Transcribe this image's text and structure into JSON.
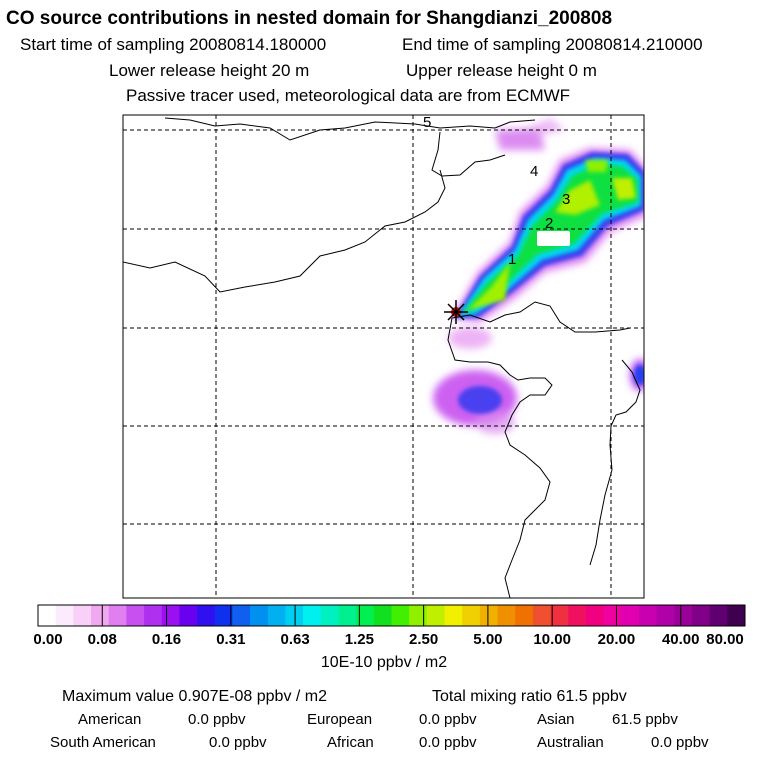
{
  "header": {
    "title": "CO  source contributions in nested domain for Shangdianzi_200808",
    "start_time": "Start time of sampling 20080814.180000",
    "end_time": "End time of sampling 20080814.210000",
    "lower_height": "Lower release height   20 m",
    "upper_height": "Upper release height    0 m",
    "tracer_note": "Passive tracer used, meteorological data are from ECMWF"
  },
  "chart_data": {
    "type": "heatmap",
    "title": "CO  source contributions in nested domain for Shangdianzi_200808",
    "grid": true,
    "colorbar": {
      "tick_labels": [
        "0.00",
        "0.08",
        "0.16",
        "0.31",
        "0.63",
        "1.25",
        "2.50",
        "5.00",
        "10.00",
        "20.00",
        "40.00",
        "80.00"
      ],
      "tick_values": [
        0.0,
        0.08,
        0.16,
        0.31,
        0.63,
        1.25,
        2.5,
        5.0,
        10.0,
        20.0,
        40.0,
        80.0
      ],
      "unit": "10E-10 ppbv / m2",
      "colors": [
        "#ffffff",
        "#fcebfc",
        "#f8d0f8",
        "#f0a8f0",
        "#e080f0",
        "#c850f0",
        "#b030f0",
        "#9a10f0",
        "#6a00f0",
        "#3010f0",
        "#1030f0",
        "#1060f0",
        "#0090f0",
        "#00b0f0",
        "#00d0f0",
        "#00f0f0",
        "#00f0c0",
        "#00f090",
        "#00f050",
        "#10e020",
        "#40f000",
        "#90f000",
        "#c0f000",
        "#f0f000",
        "#f0d000",
        "#f0b000",
        "#f09000",
        "#f07000",
        "#f05030",
        "#f03040",
        "#f01060",
        "#f00080",
        "#f000a0",
        "#e000b0",
        "#c800b0",
        "#b000a8",
        "#980098",
        "#800088",
        "#600070",
        "#400050"
      ]
    },
    "trajectory_labels": [
      "1",
      "2",
      "3",
      "4",
      "5"
    ],
    "receptor": "Shangdianzi"
  },
  "stats": {
    "max_value": "Maximum value  0.907E-08 ppbv / m2",
    "total_mixing": "Total mixing ratio        61.5 ppbv",
    "regions": [
      {
        "name": "American",
        "value": "0.0 ppbv"
      },
      {
        "name": "European",
        "value": "0.0 ppbv"
      },
      {
        "name": "Asian",
        "value": "61.5 ppbv"
      },
      {
        "name": "South American",
        "value": "0.0 ppbv"
      },
      {
        "name": "African",
        "value": "0.0 ppbv"
      },
      {
        "name": "Australian",
        "value": "0.0 ppbv"
      }
    ]
  }
}
